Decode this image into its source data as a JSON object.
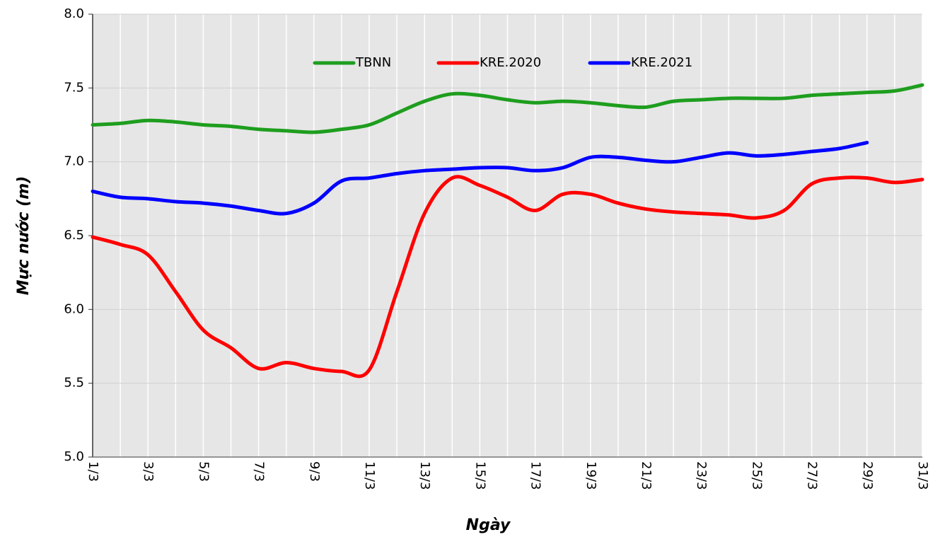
{
  "chart_data": {
    "type": "line",
    "y_label": "Mực nước (m)",
    "x_label": "Ngày",
    "categories": [
      "1/3",
      null,
      "3/3",
      null,
      "5/3",
      null,
      "7/3",
      null,
      "9/3",
      null,
      "11/3",
      null,
      "13/3",
      null,
      "15/3",
      null,
      "17/3",
      null,
      "19/3",
      null,
      "21/3",
      null,
      "23/3",
      null,
      "25/3",
      null,
      "27/3",
      null,
      "29/3",
      null,
      "31/3"
    ],
    "series": [
      {
        "name": "TBNN",
        "color": "#1e9e1e",
        "values": [
          7.25,
          7.26,
          7.28,
          7.27,
          7.25,
          7.24,
          7.22,
          7.21,
          7.2,
          7.22,
          7.25,
          7.33,
          7.41,
          7.46,
          7.45,
          7.42,
          7.4,
          7.41,
          7.4,
          7.38,
          7.37,
          7.41,
          7.42,
          7.43,
          7.43,
          7.43,
          7.45,
          7.46,
          7.47,
          7.48,
          7.52
        ]
      },
      {
        "name": "KRE.2020",
        "color": "#ff0000",
        "values": [
          6.49,
          6.44,
          6.37,
          6.12,
          5.86,
          5.74,
          5.6,
          5.64,
          5.6,
          5.58,
          5.59,
          6.12,
          6.65,
          6.89,
          6.84,
          6.76,
          6.67,
          6.78,
          6.78,
          6.72,
          6.68,
          6.66,
          6.65,
          6.64,
          6.62,
          6.67,
          6.85,
          6.89,
          6.89,
          6.86,
          6.88
        ]
      },
      {
        "name": "KRE.2021",
        "color": "#0000ff",
        "values": [
          6.8,
          6.76,
          6.75,
          6.73,
          6.72,
          6.7,
          6.67,
          6.65,
          6.72,
          6.87,
          6.89,
          6.92,
          6.94,
          6.95,
          6.96,
          6.96,
          6.94,
          6.96,
          7.03,
          7.03,
          7.01,
          7.0,
          7.03,
          7.06,
          7.04,
          7.05,
          7.07,
          7.09,
          7.13,
          null,
          null
        ]
      }
    ],
    "ylim": [
      5,
      8
    ],
    "yticks": [
      {
        "value": 5,
        "label": "5.0"
      },
      5.5,
      {
        "value": 6,
        "label": "6.0"
      },
      6.5,
      {
        "value": 7,
        "label": "7.0"
      },
      7.5,
      {
        "value": 8,
        "label": "8.0"
      }
    ],
    "grid": true,
    "legend": "top"
  }
}
